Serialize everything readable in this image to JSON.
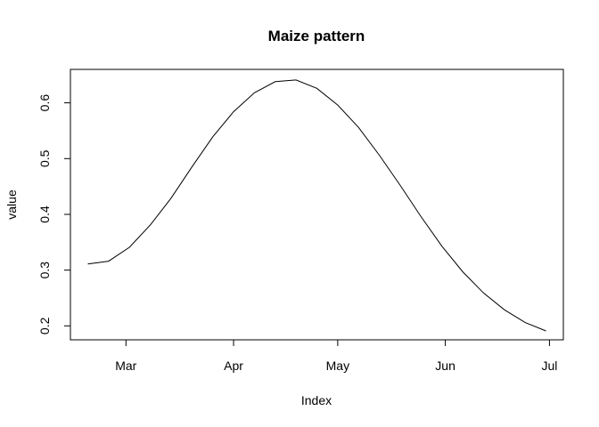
{
  "chart_data": {
    "type": "line",
    "title": "Maize pattern",
    "xlabel": "Index",
    "ylabel": "value",
    "xlim": [
      "2000-02-14",
      "2000-07-05"
    ],
    "ylim": [
      0.175,
      0.66
    ],
    "x_ticks": [
      {
        "date": "2000-03-01",
        "label": "Mar"
      },
      {
        "date": "2000-04-01",
        "label": "Apr"
      },
      {
        "date": "2000-05-01",
        "label": "May"
      },
      {
        "date": "2000-06-01",
        "label": "Jun"
      },
      {
        "date": "2000-07-01",
        "label": "Jul"
      }
    ],
    "y_ticks": [
      0.2,
      0.3,
      0.4,
      0.5,
      0.6
    ],
    "y_tick_labels": [
      "0.2",
      "0.3",
      "0.4",
      "0.5",
      "0.6"
    ],
    "grid": false,
    "series": [
      {
        "x": [
          "2000-02-19",
          "2000-02-25",
          "2000-03-02",
          "2000-03-08",
          "2000-03-14",
          "2000-03-20",
          "2000-03-26",
          "2000-04-01",
          "2000-04-07",
          "2000-04-13",
          "2000-04-19",
          "2000-04-25",
          "2000-05-01",
          "2000-05-07",
          "2000-05-13",
          "2000-05-19",
          "2000-05-25",
          "2000-05-31",
          "2000-06-06",
          "2000-06-12",
          "2000-06-18",
          "2000-06-24",
          "2000-06-30"
        ],
        "y": [
          0.311,
          0.316,
          0.341,
          0.381,
          0.429,
          0.485,
          0.539,
          0.584,
          0.618,
          0.638,
          0.641,
          0.626,
          0.596,
          0.556,
          0.506,
          0.452,
          0.396,
          0.343,
          0.297,
          0.259,
          0.229,
          0.206,
          0.191
        ]
      }
    ]
  }
}
